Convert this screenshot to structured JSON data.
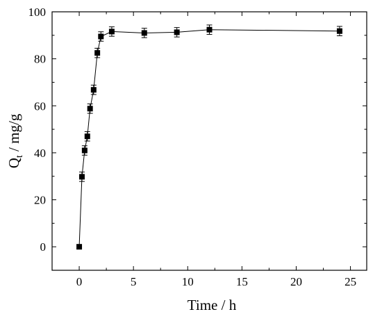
{
  "chart_data": {
    "type": "scatter",
    "xlabel": "Time / h",
    "ylabel_main": "Q",
    "ylabel_sub": "t",
    "ylabel_rest": " / mg/g",
    "xlim": [
      -2.5,
      26.5
    ],
    "ylim": [
      -10,
      100
    ],
    "xticks": [
      0,
      5,
      10,
      15,
      20,
      25
    ],
    "yticks": [
      0,
      20,
      40,
      60,
      80,
      100
    ],
    "x_minor_step": 2.5,
    "y_minor_step": 10,
    "series": [
      {
        "x": [
          0,
          0.25,
          0.5,
          0.75,
          1,
          1.33,
          1.67,
          2,
          3,
          6,
          9,
          12,
          24
        ],
        "y": [
          0,
          29.8,
          41,
          47,
          58.8,
          66.8,
          82.5,
          89.5,
          91.6,
          91,
          91.3,
          92.4,
          91.8
        ],
        "err": [
          0,
          2,
          2,
          2,
          2,
          2,
          2,
          2,
          2,
          2,
          2,
          2,
          2
        ],
        "marker": "square",
        "color": "#000000"
      }
    ],
    "grid": false
  }
}
